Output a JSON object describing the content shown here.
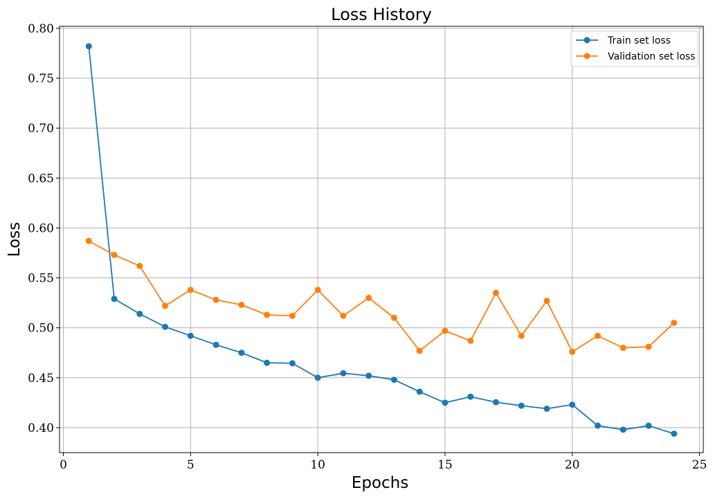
{
  "chart_data": {
    "type": "line",
    "title": "Loss History",
    "xlabel": "Epochs",
    "ylabel": "Loss",
    "xlim": [
      -0.15,
      25.15
    ],
    "ylim": [
      0.375,
      0.802
    ],
    "xticks": [
      0,
      5,
      10,
      15,
      20,
      25
    ],
    "yticks": [
      0.4,
      0.45,
      0.5,
      0.55,
      0.6,
      0.65,
      0.7,
      0.75,
      0.8
    ],
    "xtick_labels": [
      "0",
      "5",
      "10",
      "15",
      "20",
      "25"
    ],
    "ytick_labels": [
      "0.40",
      "0.45",
      "0.50",
      "0.55",
      "0.60",
      "0.65",
      "0.70",
      "0.75",
      "0.80"
    ],
    "grid": true,
    "legend_position": "top-right",
    "x": [
      1,
      2,
      3,
      4,
      5,
      6,
      7,
      8,
      9,
      10,
      11,
      12,
      13,
      14,
      15,
      16,
      17,
      18,
      19,
      20,
      21,
      22,
      23,
      24
    ],
    "series": [
      {
        "name": "Train set loss",
        "color": "#1f77b4",
        "marker": "circle",
        "values": [
          0.782,
          0.529,
          0.514,
          0.501,
          0.492,
          0.483,
          0.475,
          0.465,
          0.4645,
          0.45,
          0.4545,
          0.452,
          0.448,
          0.436,
          0.425,
          0.431,
          0.4255,
          0.422,
          0.419,
          0.423,
          0.402,
          0.398,
          0.402,
          0.394
        ]
      },
      {
        "name": "Validation set loss",
        "color": "#ff7f0e",
        "marker": "circle",
        "values": [
          0.587,
          0.573,
          0.562,
          0.522,
          0.538,
          0.528,
          0.523,
          0.513,
          0.512,
          0.538,
          0.512,
          0.53,
          0.51,
          0.477,
          0.497,
          0.487,
          0.535,
          0.492,
          0.527,
          0.476,
          0.492,
          0.48,
          0.481,
          0.505
        ]
      }
    ],
    "colors": {
      "grid": "#b0b0b0",
      "axes": "#000000",
      "legend_border": "#cccccc"
    }
  }
}
